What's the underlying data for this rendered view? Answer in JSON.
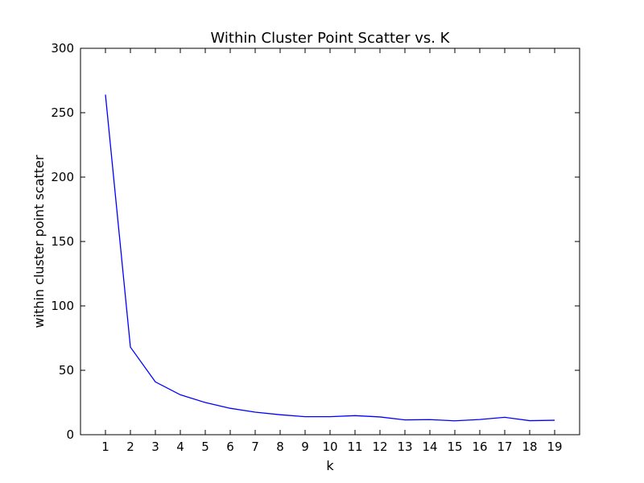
{
  "chart_data": {
    "type": "line",
    "title": "Within Cluster Point Scatter vs. K",
    "xlabel": "k",
    "ylabel": "within cluster point scatter",
    "x": [
      1,
      2,
      3,
      4,
      5,
      6,
      7,
      8,
      9,
      10,
      11,
      12,
      13,
      14,
      15,
      16,
      17,
      18,
      19
    ],
    "series": [
      {
        "values": [
          264,
          68,
          41,
          31,
          25,
          20.5,
          17.5,
          15.5,
          14,
          14,
          14.8,
          13.8,
          11.5,
          11.7,
          10.8,
          11.8,
          13.5,
          10.9,
          11.2
        ],
        "color": "#0000ff"
      }
    ],
    "xlim": [
      0,
      20
    ],
    "ylim": [
      0,
      300
    ],
    "xticks": [
      1,
      2,
      3,
      4,
      5,
      6,
      7,
      8,
      9,
      10,
      11,
      12,
      13,
      14,
      15,
      16,
      17,
      18,
      19
    ],
    "yticks": [
      0,
      50,
      100,
      150,
      200,
      250,
      300
    ],
    "grid": false,
    "legend": false
  }
}
